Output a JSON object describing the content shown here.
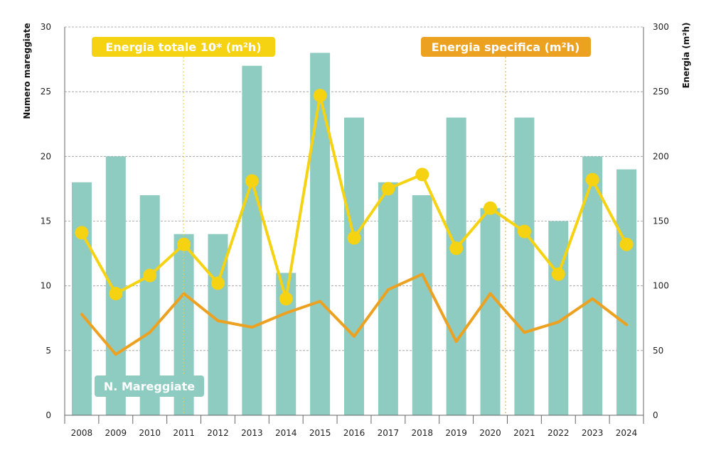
{
  "chart_data": {
    "type": "bar",
    "categories": [
      "2008",
      "2009",
      "2010",
      "2011",
      "2012",
      "2013",
      "2014",
      "2015",
      "2016",
      "2017",
      "2018",
      "2019",
      "2020",
      "2021",
      "2022",
      "2023",
      "2024"
    ],
    "series": [
      {
        "name": "N. Mareggiate",
        "type": "bar",
        "axis": "left",
        "values": [
          18,
          20,
          17,
          14,
          14,
          27,
          11,
          28,
          23,
          18,
          17,
          23,
          16,
          23,
          15,
          20,
          19
        ]
      },
      {
        "name": "Energia totale 10* (m²h)",
        "type": "line",
        "axis": "right",
        "markers": true,
        "values": [
          141,
          94,
          108,
          132,
          102,
          181,
          90,
          247,
          137,
          175,
          186,
          129,
          160,
          142,
          109,
          182,
          132
        ]
      },
      {
        "name": "Energia specifica (m²h)",
        "type": "line",
        "axis": "right",
        "markers": false,
        "values": [
          78,
          47,
          64,
          94,
          73,
          68,
          79,
          88,
          61,
          97,
          109,
          57,
          94,
          64,
          72,
          90,
          70
        ]
      }
    ],
    "ylabel": "Numero mareggiate",
    "ylabel_right": "Energia (m²h)",
    "ylim": [
      0,
      30
    ],
    "ylim_right": [
      0,
      300
    ],
    "yticks": [
      "0",
      "5",
      "10",
      "15",
      "20",
      "25",
      "30"
    ],
    "yticks_right": [
      "0",
      "50",
      "100",
      "150",
      "200",
      "250",
      "300"
    ],
    "grid": true,
    "colors": {
      "bars": "#8ecbc1",
      "energia_totale": "#f5d313",
      "energia_specifica": "#eca121",
      "grid": "#9a9a9a"
    },
    "legend": {
      "energia_totale": "Energia totale 10* (m²h)",
      "energia_specifica": "Energia specifica (m²h)",
      "mareggiate": "N. Mareggiate"
    }
  }
}
